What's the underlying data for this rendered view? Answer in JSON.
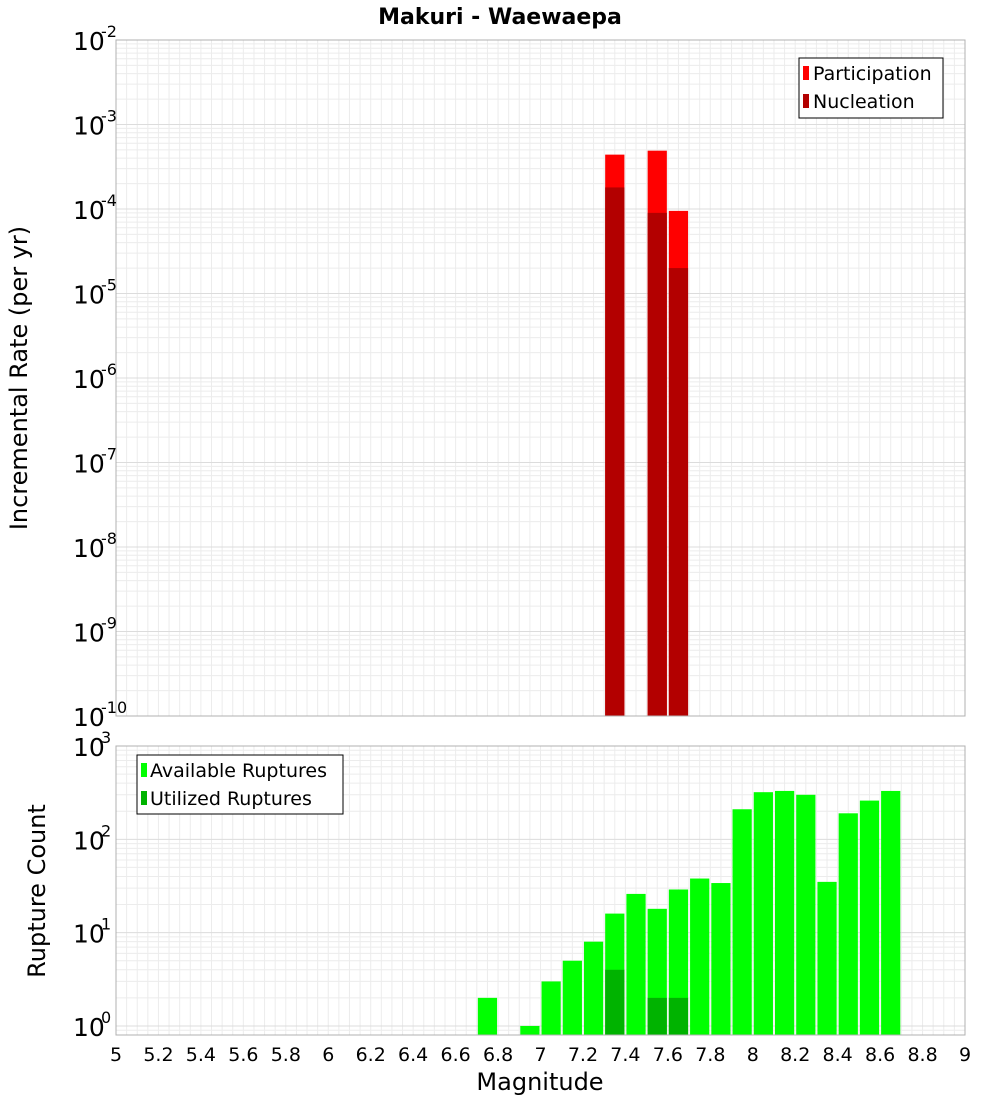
{
  "chart_data": [
    {
      "type": "bar",
      "panel": "top",
      "title": "Makuri - Waewaepa",
      "ylabel": "Incremental Rate (per yr)",
      "xlabel": "",
      "xlim": [
        5,
        9
      ],
      "ylim": [
        1e-10,
        0.01
      ],
      "yscale": "log",
      "grid": true,
      "legend_placement": "top-right",
      "bin_width": 0.1,
      "y_tick_labels": [
        "10^-10",
        "10^-9",
        "10^-8",
        "10^-7",
        "10^-6",
        "10^-5",
        "10^-4",
        "10^-3",
        "10^-2"
      ],
      "series": [
        {
          "name": "Participation",
          "color": "#ff0000",
          "x": [
            7.35,
            7.55,
            7.65
          ],
          "values": [
            0.00044,
            0.00049,
            9.5e-05
          ]
        },
        {
          "name": "Nucleation",
          "color": "#b30000",
          "x": [
            7.35,
            7.55,
            7.65
          ],
          "values": [
            0.00018,
            9e-05,
            2e-05
          ]
        }
      ]
    },
    {
      "type": "bar",
      "panel": "bottom",
      "title": "",
      "ylabel": "Rupture Count",
      "xlabel": "Magnitude",
      "xlim": [
        5,
        9
      ],
      "ylim": [
        0.8,
        1000
      ],
      "yscale": "log",
      "grid": true,
      "legend_placement": "top-left",
      "bin_width": 0.1,
      "x_tick_labels": [
        "5",
        "5.2",
        "5.4",
        "5.6",
        "5.8",
        "6",
        "6.2",
        "6.4",
        "6.6",
        "6.8",
        "7",
        "7.2",
        "7.4",
        "7.6",
        "7.8",
        "8",
        "8.2",
        "8.4",
        "8.6",
        "8.8",
        "9"
      ],
      "y_tick_labels": [
        "10^0",
        "10^1",
        "10^2",
        "10^3"
      ],
      "series": [
        {
          "name": "Available Ruptures",
          "color": "#00ff00",
          "x": [
            6.75,
            6.95,
            7.05,
            7.15,
            7.25,
            7.35,
            7.45,
            7.55,
            7.65,
            7.75,
            7.85,
            7.95,
            8.05,
            8.15,
            8.25,
            8.35,
            8.45,
            8.55,
            8.65
          ],
          "values": [
            2,
            1,
            3,
            5,
            8,
            16,
            26,
            18,
            29,
            38,
            34,
            210,
            320,
            330,
            300,
            35,
            190,
            260,
            330
          ]
        },
        {
          "name": "Utilized Ruptures",
          "color": "#00b300",
          "x": [
            7.35,
            7.55,
            7.65
          ],
          "values": [
            4,
            2,
            2
          ]
        }
      ]
    }
  ]
}
